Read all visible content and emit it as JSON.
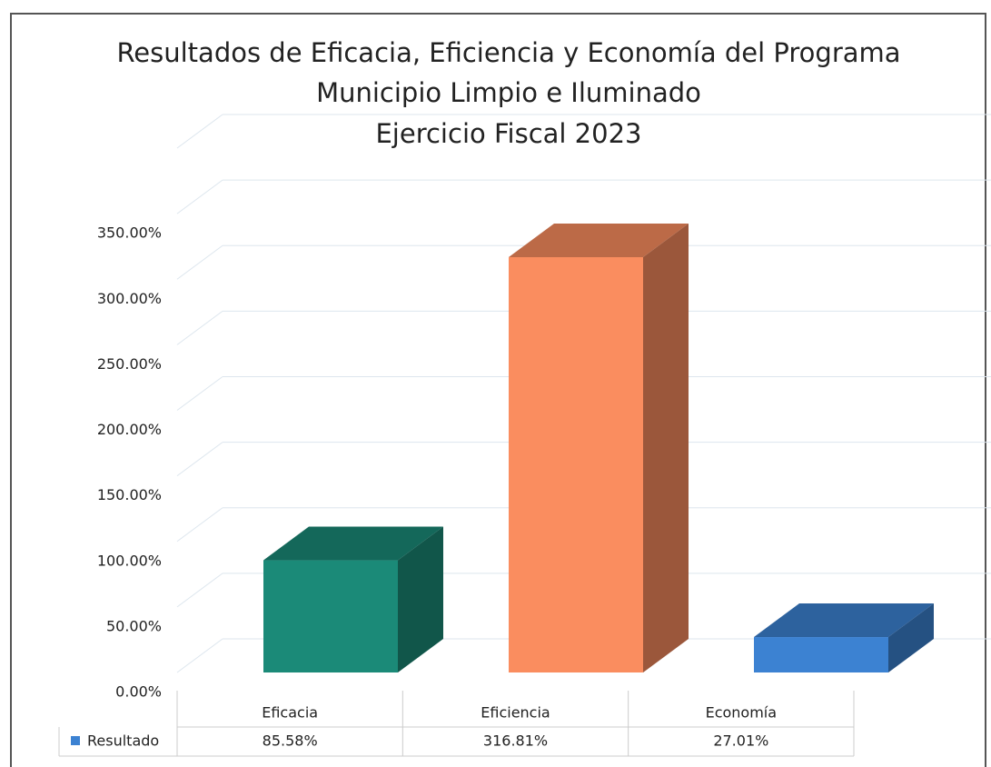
{
  "chart_data": {
    "type": "bar3d",
    "title": [
      "Resultados de Eficacia, Eficiencia y Economía del Programa",
      "Municipio Limpio e Iluminado",
      "Ejercicio Fiscal 2023"
    ],
    "categories": [
      "Eficacia",
      "Eficiencia",
      "Economía"
    ],
    "series": [
      {
        "name": "Resultado",
        "color": "#3c82d2",
        "colors": [
          "#1b8a78",
          "#fa8d5f",
          "#3c82d2"
        ],
        "values": [
          85.58,
          316.81,
          27.01
        ],
        "value_labels": [
          "85.58%",
          "316.81%",
          "27.01%"
        ]
      }
    ],
    "ylim": [
      0,
      400
    ],
    "yticks": [
      {
        "value": 0,
        "label": "0.00%"
      },
      {
        "value": 50,
        "label": "50.00%"
      },
      {
        "value": 100,
        "label": "100.00%"
      },
      {
        "value": 150,
        "label": "150.00%"
      },
      {
        "value": 200,
        "label": "200.00%"
      },
      {
        "value": 250,
        "label": "250.00%"
      },
      {
        "value": 300,
        "label": "300.00%"
      },
      {
        "value": 350,
        "label": "350.00%"
      }
    ],
    "grid": true
  }
}
